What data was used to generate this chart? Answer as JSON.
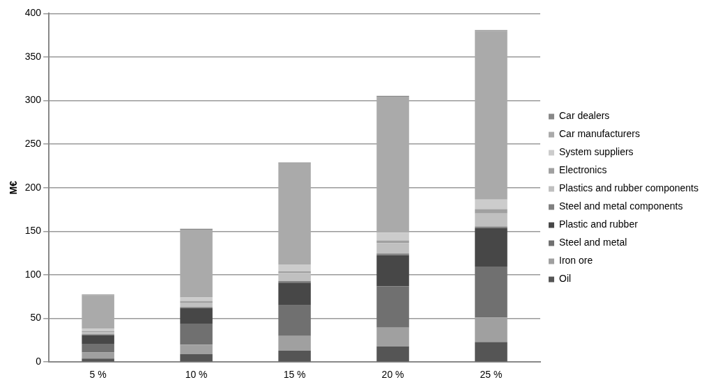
{
  "chart_data": {
    "type": "bar",
    "stacked": true,
    "ylabel": "M€",
    "categories": [
      "5 %",
      "10 %",
      "15 %",
      "20 %",
      "25 %"
    ],
    "ylim": [
      0,
      400
    ],
    "yticks": [
      0,
      50,
      100,
      150,
      200,
      250,
      300,
      350,
      400
    ],
    "grid": "y",
    "legend": "right",
    "series": [
      {
        "name": "Oil",
        "color": "#555555",
        "values": [
          4,
          9,
          13,
          18,
          23
        ]
      },
      {
        "name": "Iron ore",
        "color": "#a0a0a0",
        "values": [
          7,
          11,
          17,
          21.5,
          28
        ]
      },
      {
        "name": "Steel and metal",
        "color": "#707070",
        "values": [
          10,
          24,
          35,
          47.5,
          58.5
        ]
      },
      {
        "name": "Plastic and rubber",
        "color": "#474747",
        "values": [
          10,
          18,
          26,
          35.5,
          44.5
        ]
      },
      {
        "name": "Steel and metal components",
        "color": "#808080",
        "values": [
          1,
          1,
          2,
          2,
          1.5
        ]
      },
      {
        "name": "Plastics and rubber components",
        "color": "#c0c0c0",
        "values": [
          2.5,
          5,
          9,
          12,
          15
        ]
      },
      {
        "name": "Electronics",
        "color": "#a0a0a0",
        "values": [
          1,
          2,
          2,
          3,
          5
        ]
      },
      {
        "name": "System suppliers",
        "color": "#cccccc",
        "values": [
          2.5,
          4,
          8,
          9,
          11
        ]
      },
      {
        "name": "Car manufacturers",
        "color": "#aaaaaa",
        "values": [
          38.5,
          78,
          116,
          156,
          193.5
        ]
      },
      {
        "name": "Car dealers",
        "color": "#888888",
        "values": [
          1,
          1,
          1,
          1,
          1
        ]
      }
    ]
  }
}
